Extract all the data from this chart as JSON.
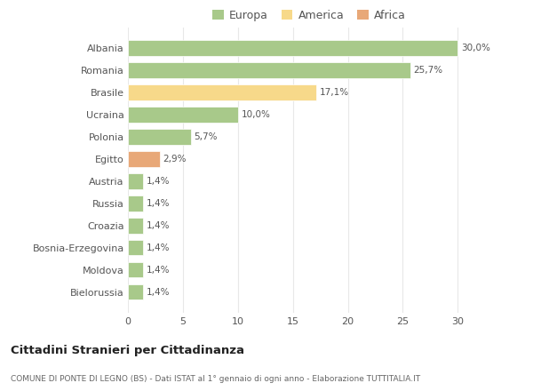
{
  "categories": [
    "Albania",
    "Romania",
    "Brasile",
    "Ucraina",
    "Polonia",
    "Egitto",
    "Austria",
    "Russia",
    "Croazia",
    "Bosnia-Erzegovina",
    "Moldova",
    "Bielorussia"
  ],
  "values": [
    30.0,
    25.7,
    17.1,
    10.0,
    5.7,
    2.9,
    1.4,
    1.4,
    1.4,
    1.4,
    1.4,
    1.4
  ],
  "colors": [
    "#a8c98a",
    "#a8c98a",
    "#f7d98a",
    "#a8c98a",
    "#a8c98a",
    "#e8a878",
    "#a8c98a",
    "#a8c98a",
    "#a8c98a",
    "#a8c98a",
    "#a8c98a",
    "#a8c98a"
  ],
  "labels": [
    "30,0%",
    "25,7%",
    "17,1%",
    "10,0%",
    "5,7%",
    "2,9%",
    "1,4%",
    "1,4%",
    "1,4%",
    "1,4%",
    "1,4%",
    "1,4%"
  ],
  "legend": [
    {
      "label": "Europa",
      "color": "#a8c98a"
    },
    {
      "label": "America",
      "color": "#f7d98a"
    },
    {
      "label": "Africa",
      "color": "#e8a878"
    }
  ],
  "xlim": [
    0,
    32
  ],
  "xticks": [
    0,
    5,
    10,
    15,
    20,
    25,
    30
  ],
  "title": "Cittadini Stranieri per Cittadinanza",
  "subtitle": "COMUNE DI PONTE DI LEGNO (BS) - Dati ISTAT al 1° gennaio di ogni anno - Elaborazione TUTTITALIA.IT",
  "bg_color": "#ffffff",
  "grid_color": "#e8e8e8",
  "bar_edge_color": "white"
}
